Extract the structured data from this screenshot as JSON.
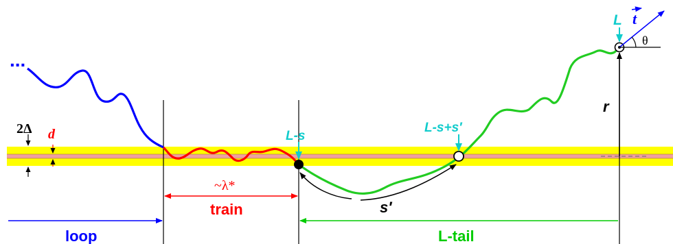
{
  "colors": {
    "band": "#ffff00",
    "surface": "#f0a0a0",
    "loop": "#0000ff",
    "train": "#ff0000",
    "tail": "#00cc00",
    "cyan": "#11cccc",
    "black": "#000000"
  },
  "labels": {
    "ellipsis": "...",
    "two_delta": "2Δ",
    "d": "d",
    "lambda": "~λ*",
    "train": "train",
    "loop": "loop",
    "ltail": "L-tail",
    "l_minus_s": "L-s",
    "l_minus_s_plus_sprime": "L-s+s′",
    "sprime": "s′",
    "L": "L",
    "t": "t",
    "theta": "θ",
    "r": "r"
  }
}
